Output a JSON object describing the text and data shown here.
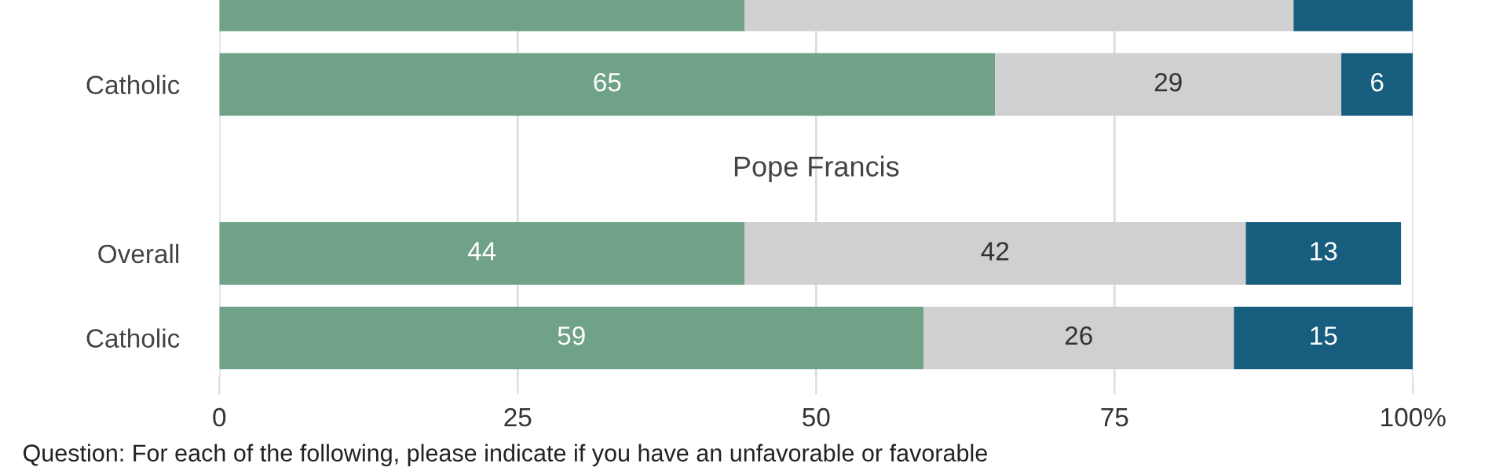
{
  "chart_data": {
    "type": "bar",
    "orientation": "horizontal",
    "stacked": true,
    "categories": [
      null,
      "Catholic",
      null,
      "Overall",
      "Catholic"
    ],
    "series": [
      {
        "color": "#6fa287",
        "values": [
          44,
          65,
          null,
          44,
          59
        ],
        "value_labels": [
          null,
          "65",
          null,
          "44",
          "59"
        ]
      },
      {
        "color": "#d0d0d0",
        "values": [
          46,
          29,
          null,
          42,
          26
        ],
        "value_labels": [
          null,
          "29",
          null,
          "42",
          "26"
        ]
      },
      {
        "color": "#175e7e",
        "values": [
          10,
          6,
          null,
          13,
          15
        ],
        "value_labels": [
          null,
          "6",
          null,
          "13",
          "15"
        ]
      }
    ],
    "xlim": [
      0,
      100
    ],
    "xticks": [
      0,
      25,
      50,
      75,
      {
        "value": 100,
        "label": "100%"
      }
    ],
    "grid": "x",
    "annotations": [
      "Pope Francis",
      "Question: For each of the following, please indicate if you have an unfavorable or favorable"
    ]
  }
}
